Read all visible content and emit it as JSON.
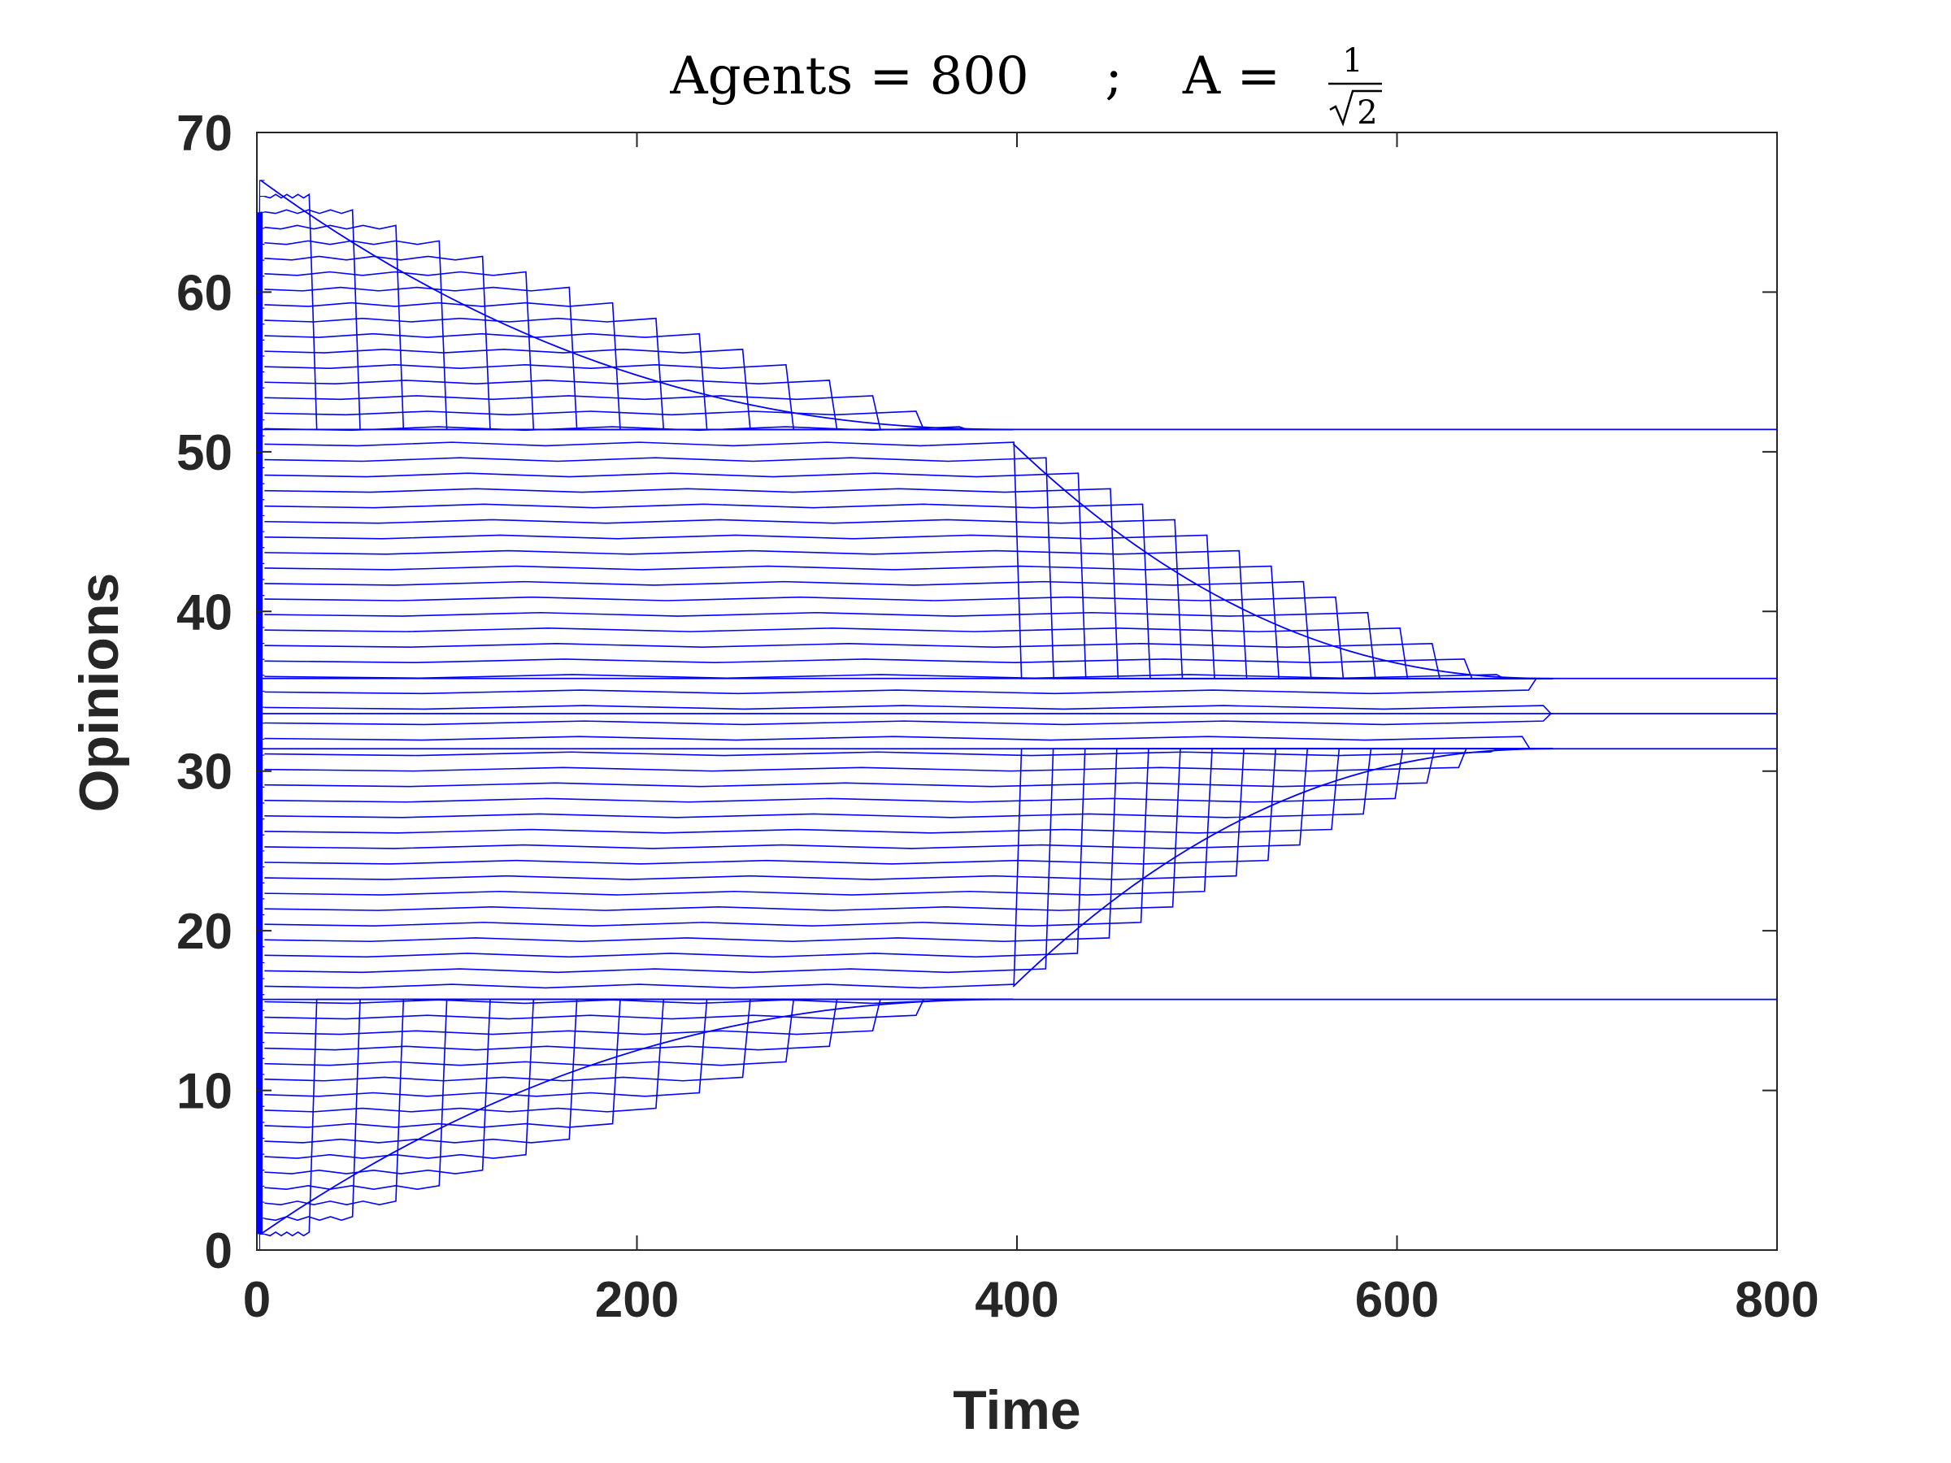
{
  "chart_data": {
    "type": "line",
    "title": {
      "agents_text": "Agents = 800",
      "separator": ";",
      "a_text": "A =",
      "frac_numerator": "1",
      "frac_denominator": "2"
    },
    "xlabel": "Time",
    "ylabel": "Opinions",
    "xlim": [
      0,
      800
    ],
    "ylim": [
      0,
      70
    ],
    "xticks": [
      0,
      200,
      400,
      600,
      800
    ],
    "yticks": [
      0,
      10,
      20,
      30,
      40,
      50,
      60,
      70
    ],
    "grid": false,
    "legend": "none",
    "line_color": "#0000ff",
    "agents": 800,
    "initial_opinion_range": [
      0,
      67
    ],
    "series_description_values": {
      "band_count": 68,
      "outer_collapse_time": 398,
      "inner_collapse_time": 682,
      "final_clusters": [
        15.7,
        31.4,
        33.6,
        35.8,
        51.4
      ]
    },
    "series": [
      {
        "name": "",
        "x": [
          0,
          398,
          800
        ],
        "y": [
          51.4,
          51.4,
          51.4
        ]
      },
      {
        "name": "",
        "x": [
          0,
          682,
          800
        ],
        "y": [
          35.8,
          35.8,
          35.8
        ]
      },
      {
        "name": "",
        "x": [
          0,
          682,
          800
        ],
        "y": [
          33.6,
          33.6,
          33.6
        ]
      },
      {
        "name": "",
        "x": [
          0,
          682,
          800
        ],
        "y": [
          31.4,
          31.4,
          31.4
        ]
      },
      {
        "name": "",
        "x": [
          0,
          398,
          800
        ],
        "y": [
          15.7,
          15.7,
          15.7
        ]
      }
    ]
  }
}
